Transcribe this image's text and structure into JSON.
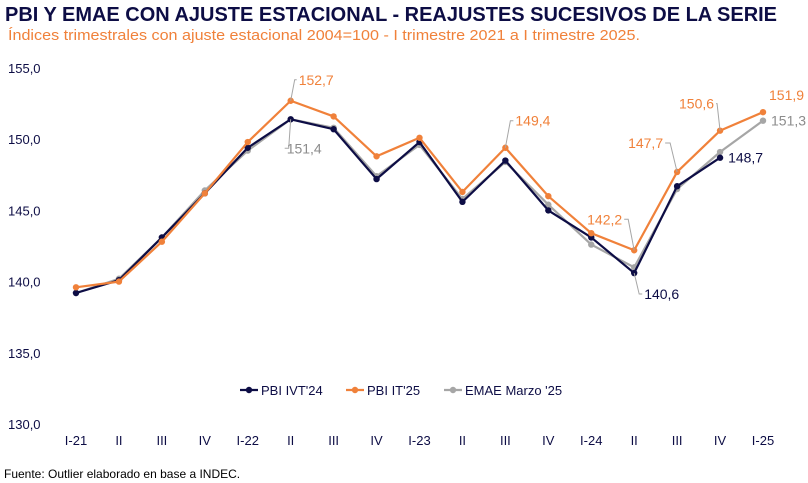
{
  "chart_data": {
    "type": "line",
    "title": "PBI Y EMAE CON AJUSTE ESTACIONAL - REAJUSTES SUCESIVOS DE LA SERIE",
    "subtitle": "Índices trimestrales con ajuste estacional 2004=100 - I trimestre 2021 a I trimestre 2025.",
    "source": "Fuente: Outlier elaborado en base a INDEC.",
    "xlabel": "",
    "ylabel": "",
    "ylim": [
      130,
      155
    ],
    "yticks": [
      "130,0",
      "135,0",
      "140,0",
      "145,0",
      "150,0",
      "155,0"
    ],
    "grid": false,
    "legend_position": "bottom-center",
    "categories": [
      "I-21",
      "II",
      "III",
      "IV",
      "I-22",
      "II",
      "III",
      "IV",
      "I-23",
      "II",
      "III",
      "IV",
      "I-24",
      "II",
      "III",
      "IV",
      "I-25"
    ],
    "series": [
      {
        "name": "PBI IVT'24",
        "color": "#0d0d45",
        "values": [
          139.2,
          140.1,
          143.1,
          146.2,
          149.4,
          151.4,
          150.7,
          147.2,
          149.8,
          145.6,
          148.5,
          145.0,
          143.1,
          140.6,
          146.7,
          148.7,
          null
        ]
      },
      {
        "name": "PBI IT'25",
        "color": "#f0813a",
        "values": [
          139.6,
          140.0,
          142.8,
          146.2,
          149.8,
          152.7,
          151.6,
          148.8,
          150.1,
          146.3,
          149.4,
          146.0,
          143.4,
          142.2,
          147.7,
          150.6,
          151.9
        ]
      },
      {
        "name": "EMAE Marzo '25",
        "color": "#a6a6a6",
        "values": [
          139.2,
          140.2,
          143.1,
          146.4,
          149.2,
          151.4,
          150.8,
          147.4,
          149.6,
          145.8,
          148.4,
          145.4,
          142.6,
          141.0,
          146.5,
          149.1,
          151.3
        ]
      }
    ],
    "annotations": [
      {
        "series": 1,
        "index": 5,
        "text": "152,7"
      },
      {
        "series": 2,
        "index": 5,
        "text": "151,4"
      },
      {
        "series": 1,
        "index": 10,
        "text": "149,4"
      },
      {
        "series": 1,
        "index": 13,
        "text": "142,2"
      },
      {
        "series": 0,
        "index": 13,
        "text": "140,6"
      },
      {
        "series": 1,
        "index": 14,
        "text": "147,7"
      },
      {
        "series": 1,
        "index": 15,
        "text": "150,6"
      },
      {
        "series": 0,
        "index": 15,
        "text": "148,7"
      },
      {
        "series": 1,
        "index": 16,
        "text": "151,9"
      },
      {
        "series": 2,
        "index": 16,
        "text": "151,3"
      }
    ]
  }
}
